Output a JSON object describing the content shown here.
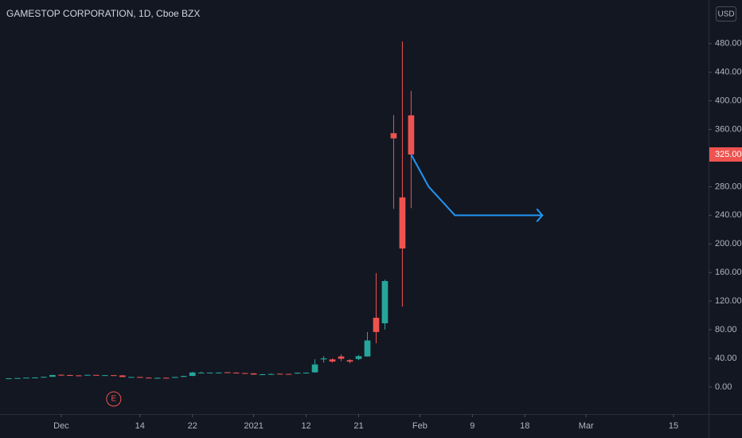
{
  "chart_data": {
    "type": "candlestick",
    "title": "GAMESTOP CORPORATION, 1D, Cboe BZX",
    "currency": "USD",
    "up_color": "#26a69a",
    "down_color": "#ef5350",
    "x": [
      0,
      1,
      2,
      3,
      4,
      5,
      6,
      7,
      8,
      9,
      10,
      11,
      12,
      13,
      14,
      15,
      16,
      17,
      18,
      19,
      20,
      21,
      22,
      23,
      24,
      25,
      26,
      27,
      28,
      29,
      30,
      31,
      32,
      33,
      34,
      35,
      36,
      37,
      38,
      39,
      40,
      41,
      42,
      43,
      44,
      45,
      46
    ],
    "open": [
      12.0,
      12.0,
      12.5,
      13.1,
      13.3,
      14.2,
      17.0,
      16.6,
      16.1,
      15.8,
      16.8,
      16.3,
      16.4,
      16.0,
      13.9,
      13.9,
      13.0,
      12.7,
      12.8,
      12.7,
      14.0,
      15.4,
      20.0,
      20.0,
      20.0,
      20.5,
      20.0,
      19.4,
      19.0,
      17.4,
      17.3,
      18.5,
      18.2,
      19.4,
      19.9,
      20.4,
      38.5,
      38.5,
      42.6,
      37.4,
      39.1,
      42.6,
      96.7,
      89.0,
      354.8,
      265.0,
      379.7
    ],
    "high": [
      12.3,
      12.6,
      13.2,
      13.6,
      14.4,
      16.9,
      17.6,
      16.9,
      16.4,
      16.9,
      16.9,
      16.6,
      16.7,
      16.6,
      14.0,
      14.0,
      13.5,
      13.3,
      13.4,
      14.0,
      15.6,
      21.0,
      21.3,
      20.4,
      20.6,
      20.9,
      20.6,
      19.8,
      19.1,
      18.1,
      18.9,
      18.8,
      18.3,
      20.0,
      20.4,
      38.7,
      43.1,
      40.0,
      45.5,
      38.7,
      44.8,
      76.8,
      159.2,
      150.0,
      380.0,
      483.0,
      413.98
    ],
    "low": [
      11.7,
      11.9,
      12.4,
      12.8,
      13.1,
      14.0,
      15.8,
      15.9,
      15.3,
      15.6,
      16.0,
      15.6,
      15.3,
      13.8,
      13.2,
      12.7,
      12.5,
      12.6,
      12.5,
      12.6,
      13.9,
      15.1,
      19.5,
      19.5,
      19.2,
      19.5,
      19.2,
      18.8,
      17.2,
      17.2,
      17.1,
      17.9,
      17.1,
      18.0,
      19.3,
      20.0,
      34.0,
      34.0,
      36.1,
      33.1,
      37.6,
      42.3,
      61.1,
      80.2,
      249.0,
      112.3,
      250.0
    ],
    "close": [
      12.0,
      12.4,
      13.0,
      13.2,
      14.1,
      16.6,
      16.6,
      16.1,
      15.8,
      16.9,
      16.3,
      16.4,
      16.2,
      13.9,
      13.9,
      13.0,
      12.7,
      12.7,
      12.6,
      13.9,
      15.3,
      20.2,
      20.0,
      20.1,
      20.1,
      20.2,
      19.4,
      18.8,
      17.3,
      17.7,
      18.1,
      18.1,
      17.7,
      19.9,
      19.95,
      31.4,
      39.9,
      35.5,
      39.4,
      35.4,
      43.0,
      65.0,
      76.8,
      147.98,
      347.5,
      193.6,
      325.0
    ],
    "price_label": {
      "value": 325,
      "label": "325.00"
    },
    "projection": {
      "color": "#2196f3",
      "x": [
        46,
        48,
        51,
        61
      ],
      "values": [
        325,
        280,
        240,
        240
      ]
    },
    "events": [
      {
        "label": "E",
        "x": 12
      }
    ],
    "xlim": [
      -1,
      80
    ],
    "xticks": [
      {
        "value": 6,
        "label": "Dec"
      },
      {
        "value": 15,
        "label": "14"
      },
      {
        "value": 21,
        "label": "22"
      },
      {
        "value": 28,
        "label": "2021"
      },
      {
        "value": 34,
        "label": "12"
      },
      {
        "value": 40,
        "label": "21"
      },
      {
        "value": 47,
        "label": "Feb"
      },
      {
        "value": 53,
        "label": "9"
      },
      {
        "value": 59,
        "label": "18"
      },
      {
        "value": 66,
        "label": "Mar"
      },
      {
        "value": 76,
        "label": "15"
      }
    ],
    "ylim": [
      -38,
      541
    ],
    "yticks": [
      {
        "value": 0,
        "label": "0.00"
      },
      {
        "value": 40,
        "label": "40.00"
      },
      {
        "value": 80,
        "label": "80.00"
      },
      {
        "value": 120,
        "label": "120.00"
      },
      {
        "value": 160,
        "label": "160.00"
      },
      {
        "value": 200,
        "label": "200.00"
      },
      {
        "value": 240,
        "label": "240.00"
      },
      {
        "value": 280,
        "label": "280.00"
      },
      {
        "value": 360,
        "label": "360.00"
      },
      {
        "value": 400,
        "label": "400.00"
      },
      {
        "value": 440,
        "label": "440.00"
      },
      {
        "value": 480,
        "label": "480.00"
      }
    ]
  }
}
